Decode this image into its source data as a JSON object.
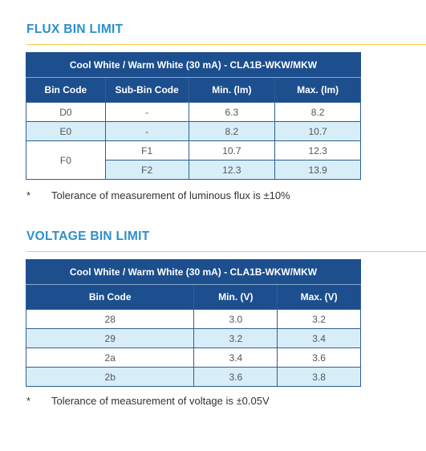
{
  "flux": {
    "title": "FLUX BIN LIMIT",
    "caption": "Cool White / Warm White (30 mA) - CLA1B-WKW/MKW",
    "headers": [
      "Bin Code",
      "Sub-Bin Code",
      "Min. (lm)",
      "Max. (lm)"
    ],
    "rows": [
      {
        "bin": "D0",
        "sub": "-",
        "min": "6.3",
        "max": "8.2"
      },
      {
        "bin": "E0",
        "sub": "-",
        "min": "8.2",
        "max": "10.7"
      },
      {
        "bin": "F0",
        "sub": "F1",
        "min": "10.7",
        "max": "12.3"
      },
      {
        "bin": "",
        "sub": "F2",
        "min": "12.3",
        "max": "13.9"
      }
    ],
    "note_marker": "*",
    "note": "Tolerance of measurement of luminous flux is ±10%"
  },
  "voltage": {
    "title": "VOLTAGE BIN LIMIT",
    "caption": "Cool White / Warm White (30 mA) - CLA1B-WKW/MKW",
    "headers": [
      "Bin Code",
      "Min. (V)",
      "Max. (V)"
    ],
    "rows": [
      {
        "bin": "28",
        "min": "3.0",
        "max": "3.2"
      },
      {
        "bin": "29",
        "min": "3.2",
        "max": "3.4"
      },
      {
        "bin": "2a",
        "min": "3.4",
        "max": "3.6"
      },
      {
        "bin": "2b",
        "min": "3.6",
        "max": "3.8"
      }
    ],
    "note_marker": "*",
    "note": "Tolerance of measurement of voltage is ±0.05V"
  },
  "colors": {
    "title": "#2b8fcf",
    "header_bg": "#1d4f8e",
    "row_shade": "#d7eef9",
    "rule": "#f5c842"
  }
}
